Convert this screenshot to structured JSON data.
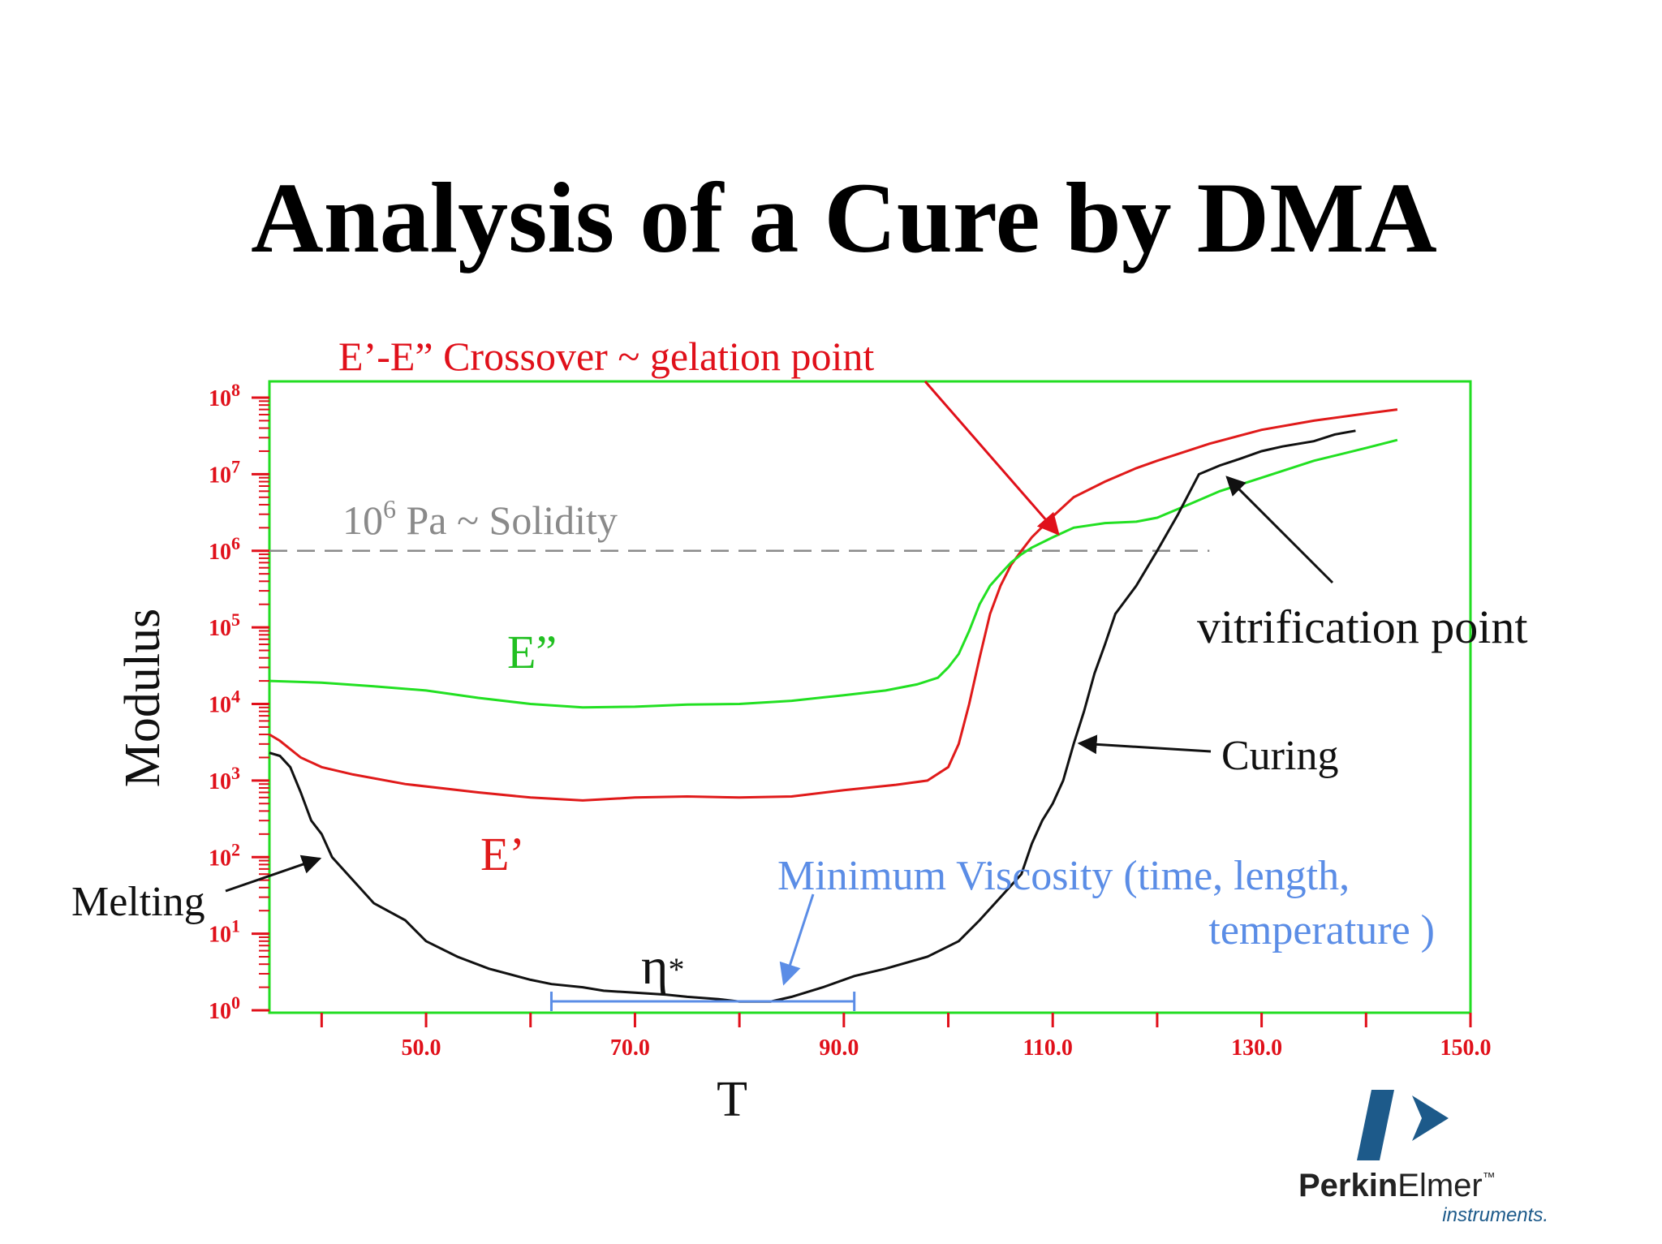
{
  "title": "Analysis of a Cure by DMA",
  "colors": {
    "frame": "#22dd22",
    "axis": "#e0101a",
    "storage_modulus": "#e01a1a",
    "loss_modulus": "#22e022",
    "viscosity": "#111111",
    "solidity_line": "#8a8a8a",
    "min_viscosity": "#5b8de6",
    "logo": "#1d5a8a"
  },
  "chart_data": {
    "type": "line",
    "xlabel": "T",
    "ylabel": "Modulus",
    "x_scale": "linear",
    "y_scale": "log",
    "xlim": [
      35,
      150
    ],
    "ylim": [
      1,
      100000000
    ],
    "grid": false,
    "x_ticks": [
      {
        "value": 50,
        "label": "50.0"
      },
      {
        "value": 70,
        "label": "70.0"
      },
      {
        "value": 90,
        "label": "90.0"
      },
      {
        "value": 110,
        "label": "110.0"
      },
      {
        "value": 130,
        "label": "130.0"
      },
      {
        "value": 150,
        "label": "150.0"
      }
    ],
    "x_minor_ticks": [
      40,
      60,
      80,
      100,
      120,
      140
    ],
    "y_ticks": [
      {
        "value": 1,
        "base": "10",
        "exp": "0"
      },
      {
        "value": 10,
        "base": "10",
        "exp": "1"
      },
      {
        "value": 100,
        "base": "10",
        "exp": "2"
      },
      {
        "value": 1000,
        "base": "10",
        "exp": "3"
      },
      {
        "value": 10000,
        "base": "10",
        "exp": "4"
      },
      {
        "value": 100000,
        "base": "10",
        "exp": "5"
      },
      {
        "value": 1000000,
        "base": "10",
        "exp": "6"
      },
      {
        "value": 10000000,
        "base": "10",
        "exp": "7"
      },
      {
        "value": 100000000,
        "base": "10",
        "exp": "8"
      }
    ],
    "series": [
      {
        "key": "storage",
        "label": "E’",
        "points": [
          [
            35,
            4000
          ],
          [
            36,
            3300
          ],
          [
            38,
            2000
          ],
          [
            40,
            1500
          ],
          [
            43,
            1200
          ],
          [
            48,
            900
          ],
          [
            55,
            700
          ],
          [
            60,
            600
          ],
          [
            65,
            550
          ],
          [
            70,
            600
          ],
          [
            75,
            620
          ],
          [
            80,
            600
          ],
          [
            85,
            620
          ],
          [
            90,
            750
          ],
          [
            95,
            880
          ],
          [
            98,
            1000
          ],
          [
            100,
            1500
          ],
          [
            101,
            3000
          ],
          [
            102,
            10000
          ],
          [
            103,
            40000
          ],
          [
            104,
            150000
          ],
          [
            105,
            350000
          ],
          [
            106,
            650000
          ],
          [
            107,
            1000000
          ],
          [
            108,
            1500000
          ],
          [
            110,
            2800000
          ],
          [
            112,
            5000000
          ],
          [
            115,
            8000000
          ],
          [
            118,
            12000000
          ],
          [
            120,
            15000000
          ],
          [
            125,
            25000000
          ],
          [
            130,
            38000000
          ],
          [
            135,
            50000000
          ],
          [
            140,
            62000000
          ],
          [
            143,
            70000000
          ]
        ]
      },
      {
        "key": "loss",
        "label": "E”",
        "points": [
          [
            35,
            20000
          ],
          [
            40,
            19000
          ],
          [
            45,
            17000
          ],
          [
            50,
            15000
          ],
          [
            55,
            12000
          ],
          [
            60,
            10000
          ],
          [
            65,
            9000
          ],
          [
            70,
            9200
          ],
          [
            75,
            9800
          ],
          [
            80,
            10000
          ],
          [
            85,
            11000
          ],
          [
            90,
            13000
          ],
          [
            94,
            15000
          ],
          [
            97,
            18000
          ],
          [
            99,
            22000
          ],
          [
            100,
            30000
          ],
          [
            101,
            45000
          ],
          [
            102,
            90000
          ],
          [
            103,
            200000
          ],
          [
            104,
            350000
          ],
          [
            105,
            500000
          ],
          [
            106,
            700000
          ],
          [
            107,
            900000
          ],
          [
            108,
            1100000
          ],
          [
            110,
            1500000
          ],
          [
            112,
            2000000
          ],
          [
            115,
            2300000
          ],
          [
            118,
            2400000
          ],
          [
            120,
            2700000
          ],
          [
            123,
            4000000
          ],
          [
            126,
            6000000
          ],
          [
            130,
            9000000
          ],
          [
            135,
            15000000
          ],
          [
            140,
            22000000
          ],
          [
            143,
            28000000
          ]
        ]
      },
      {
        "key": "viscosity",
        "label": "η*",
        "points": [
          [
            35,
            2300
          ],
          [
            36,
            2100
          ],
          [
            37,
            1500
          ],
          [
            38,
            700
          ],
          [
            39,
            300
          ],
          [
            40,
            200
          ],
          [
            41,
            100
          ],
          [
            43,
            50
          ],
          [
            45,
            25
          ],
          [
            48,
            15
          ],
          [
            50,
            8
          ],
          [
            53,
            5
          ],
          [
            56,
            3.5
          ],
          [
            60,
            2.5
          ],
          [
            62,
            2.2
          ],
          [
            65,
            2.0
          ],
          [
            67,
            1.8
          ],
          [
            70,
            1.7
          ],
          [
            73,
            1.6
          ],
          [
            75,
            1.5
          ],
          [
            78,
            1.4
          ],
          [
            80,
            1.3
          ],
          [
            83,
            1.3
          ],
          [
            85,
            1.5
          ],
          [
            88,
            2
          ],
          [
            91,
            2.8
          ],
          [
            94,
            3.5
          ],
          [
            98,
            5
          ],
          [
            101,
            8
          ],
          [
            103,
            15
          ],
          [
            105,
            30
          ],
          [
            107,
            60
          ],
          [
            108,
            150
          ],
          [
            109,
            300
          ],
          [
            110,
            500
          ],
          [
            111,
            1000
          ],
          [
            112,
            3000
          ],
          [
            113,
            8000
          ],
          [
            114,
            25000
          ],
          [
            115,
            60000
          ],
          [
            116,
            150000
          ],
          [
            118,
            350000
          ],
          [
            120,
            1000000
          ],
          [
            122,
            3000000
          ],
          [
            124,
            10000000
          ],
          [
            126,
            13000000
          ],
          [
            128,
            16000000
          ],
          [
            130,
            20000000
          ],
          [
            132,
            23000000
          ],
          [
            135,
            27000000
          ],
          [
            137,
            33000000
          ],
          [
            139,
            37000000
          ]
        ]
      }
    ],
    "reference_line": {
      "y": 1000000,
      "x_from": 35,
      "x_to": 125,
      "base": "10",
      "exp": "6",
      "label": " Pa ~ Solidity"
    },
    "annotations": {
      "crossover": {
        "text": "E’-E” Crossover ~ gelation point",
        "x": 110,
        "y": 1200000
      },
      "vitrification": {
        "text": "vitrification point",
        "x": 127,
        "y": 9000000
      },
      "curing": {
        "text": "Curing",
        "x": 112,
        "y": 3500
      },
      "melting": {
        "text": "Melting",
        "x": 41,
        "y": 100
      },
      "min_viscosity_line1": "Minimum Viscosity (time, length,",
      "min_viscosity_line2": "temperature )",
      "min_viscosity_range": [
        62,
        91
      ],
      "min_viscosity_point": {
        "x": 84,
        "y": 1.4
      },
      "eta_symbol": "η",
      "eta_star": "*"
    }
  },
  "logo": {
    "word_bold": "Perkin",
    "word_rest": "Elmer",
    "tm": "™",
    "subtitle": "instruments."
  }
}
